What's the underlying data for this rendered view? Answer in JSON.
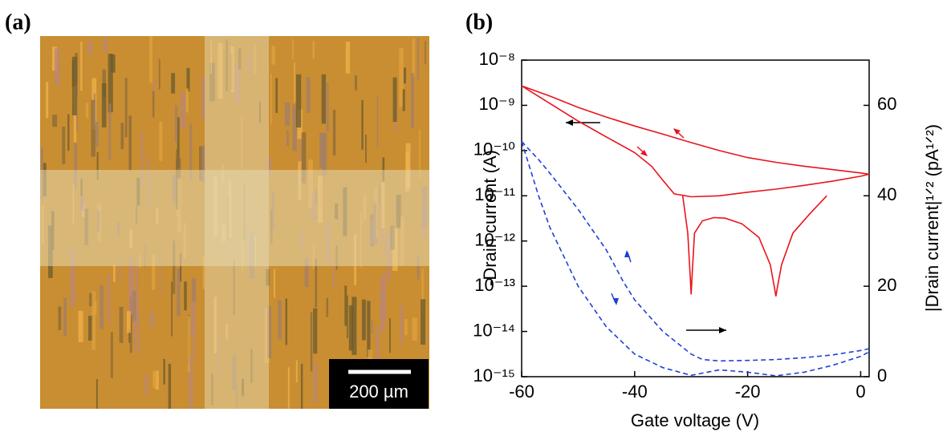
{
  "panels": {
    "a": {
      "label": "(a)",
      "scale_bar": "200 µm"
    }
  },
  "chart_data": {
    "type": "line",
    "panel_label": "(b)",
    "xlabel": "Gate voltage (V)",
    "ylabel": "-Drain current (A)",
    "y2label": "|Drain current|¹ᐟ² (pA¹ᐟ²)",
    "xlim": [
      -60,
      1.5
    ],
    "xticks": [
      -60,
      -40,
      -20,
      0
    ],
    "yscale": "log",
    "ylim": [
      1e-15,
      1e-08
    ],
    "yticks": [
      {
        "value": 1e-15,
        "label": "10⁻¹⁵"
      },
      {
        "value": 1e-14,
        "label": "10⁻¹⁴"
      },
      {
        "value": 1e-13,
        "label": "10⁻¹³"
      },
      {
        "value": 1e-12,
        "label": "10⁻¹²"
      },
      {
        "value": 1e-11,
        "label": "10⁻¹¹"
      },
      {
        "value": 1e-10,
        "label": "10⁻¹⁰"
      },
      {
        "value": 1e-09,
        "label": "10⁻⁹"
      },
      {
        "value": 1e-08,
        "label": "10⁻⁸"
      }
    ],
    "y2lim": [
      0,
      70
    ],
    "y2ticks": [
      0,
      20,
      40,
      60
    ],
    "series": [
      {
        "color": "#e8141c",
        "linestyle": "solid",
        "axis": "y",
        "x": [
          -60,
          -55,
          -50,
          -45,
          -40,
          -35,
          -30,
          -25,
          -20,
          -15,
          -10,
          -5,
          0,
          1.5
        ],
        "values": [
          2.7e-09,
          1.6e-09,
          9e-10,
          5.5e-10,
          3.5e-10,
          2.3e-10,
          1.5e-10,
          1e-10,
          7e-11,
          5.5e-11,
          4.5e-11,
          3.8e-11,
          3.2e-11,
          3e-11
        ]
      },
      {
        "color": "#e8141c",
        "linestyle": "solid",
        "axis": "y",
        "x": [
          -60,
          -55,
          -50,
          -45,
          -40,
          -37,
          -35,
          -33,
          -30,
          -25,
          -20,
          -15,
          -10,
          -5,
          0,
          1.5
        ],
        "values": [
          2.7e-09,
          1.1e-09,
          4.5e-10,
          2e-10,
          9e-11,
          4.5e-11,
          2.2e-11,
          1.1e-11,
          9.5e-12,
          1e-11,
          1.2e-11,
          1.4e-11,
          1.7e-11,
          2.1e-11,
          2.7e-11,
          3e-11
        ]
      },
      {
        "color": "#e8141c",
        "linestyle": "solid",
        "axis": "y",
        "x": [
          -31.5,
          -30.6,
          -30.2,
          -30,
          -29.8,
          -29.4,
          -28,
          -26,
          -24,
          -21,
          -18,
          -16,
          -15.3,
          -15,
          -14.7,
          -14,
          -12,
          -9,
          -6
        ],
        "values": [
          1e-11,
          1.5e-12,
          2e-13,
          6.6e-14,
          2e-13,
          1.5e-12,
          2.8e-12,
          3.3e-12,
          3.2e-12,
          2.4e-12,
          1.2e-12,
          3e-13,
          1e-13,
          6e-14,
          1e-13,
          3e-13,
          1.5e-12,
          4e-12,
          1e-11
        ]
      },
      {
        "color": "#1f3fd6",
        "linestyle": "dashed",
        "axis": "y2",
        "x": [
          -60,
          -57,
          -55,
          -50,
          -45,
          -42,
          -40,
          -35,
          -30,
          -28,
          -25,
          -20,
          -15,
          -10,
          -5,
          0,
          1.5
        ],
        "values": [
          52,
          48,
          45,
          37,
          28,
          21,
          17,
          10,
          5,
          3.8,
          3.5,
          3.6,
          3.8,
          4.2,
          4.8,
          5.8,
          6.2
        ]
      },
      {
        "color": "#1f3fd6",
        "linestyle": "dashed",
        "axis": "y2",
        "x": [
          -60,
          -57,
          -55,
          -50,
          -45,
          -40,
          -35,
          -30,
          -25,
          -20,
          -15,
          -10,
          -5,
          0,
          1.5
        ],
        "values": [
          52,
          40,
          33,
          20,
          11,
          5,
          2,
          0.3,
          1.5,
          1,
          0.2,
          1,
          2.5,
          4.5,
          5.5
        ]
      }
    ]
  }
}
